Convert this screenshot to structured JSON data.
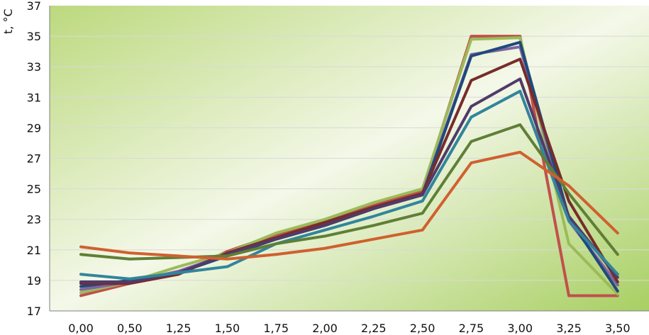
{
  "chart_data": {
    "type": "line",
    "title": "",
    "xlabel": "",
    "ylabel": "t, °C",
    "categories": [
      "0,00",
      "0,50",
      "1,25",
      "1,50",
      "1,75",
      "2,00",
      "2,25",
      "2,50",
      "2,75",
      "3,00",
      "3,25",
      "3,50"
    ],
    "y_ticks": [
      "17",
      "19",
      "21",
      "23",
      "25",
      "27",
      "29",
      "31",
      "33",
      "35",
      "37"
    ],
    "ylim": [
      17,
      37
    ],
    "grid": true,
    "legend": "none",
    "background": {
      "top_left": "#bcd97e",
      "middle": "#f4f8e9",
      "bottom_right": "#a8cf62"
    },
    "series": [
      {
        "color": "#c0504d",
        "values": [
          18.0,
          18.8,
          19.4,
          20.9,
          22.0,
          22.9,
          23.9,
          24.9,
          35.0,
          35.0,
          18.0,
          18.0
        ]
      },
      {
        "color": "#9bbb59",
        "values": [
          18.2,
          18.9,
          19.9,
          20.8,
          22.1,
          23.0,
          24.1,
          25.0,
          34.8,
          34.9,
          21.4,
          18.1
        ]
      },
      {
        "color": "#8064a2",
        "values": [
          18.4,
          18.9,
          19.6,
          20.7,
          21.8,
          22.7,
          23.8,
          24.7,
          33.8,
          34.3,
          22.9,
          18.7
        ]
      },
      {
        "color": "#1f497d",
        "values": [
          18.6,
          19.0,
          19.5,
          20.6,
          21.7,
          22.6,
          23.7,
          24.6,
          33.7,
          34.6,
          23.1,
          18.3
        ]
      },
      {
        "color": "#772c2a",
        "values": [
          18.8,
          18.8,
          19.4,
          20.8,
          21.8,
          22.8,
          23.8,
          24.7,
          32.1,
          33.5,
          24.2,
          18.9
        ]
      },
      {
        "color": "#4f3b6a",
        "values": [
          18.9,
          18.9,
          19.5,
          20.7,
          21.7,
          22.6,
          23.7,
          24.6,
          30.4,
          32.2,
          23.2,
          19.2
        ]
      },
      {
        "color": "#31859c",
        "values": [
          19.4,
          19.1,
          19.5,
          19.9,
          21.4,
          22.3,
          23.2,
          24.2,
          29.7,
          31.4,
          22.9,
          19.4
        ]
      },
      {
        "color": "#5f7f36",
        "values": [
          20.7,
          20.4,
          20.5,
          20.6,
          21.4,
          21.9,
          22.6,
          23.4,
          28.1,
          29.2,
          24.7,
          20.7
        ]
      },
      {
        "color": "#d0602f",
        "values": [
          21.2,
          20.8,
          20.6,
          20.4,
          20.7,
          21.1,
          21.7,
          22.3,
          26.7,
          27.4,
          25.2,
          22.1
        ]
      }
    ]
  }
}
